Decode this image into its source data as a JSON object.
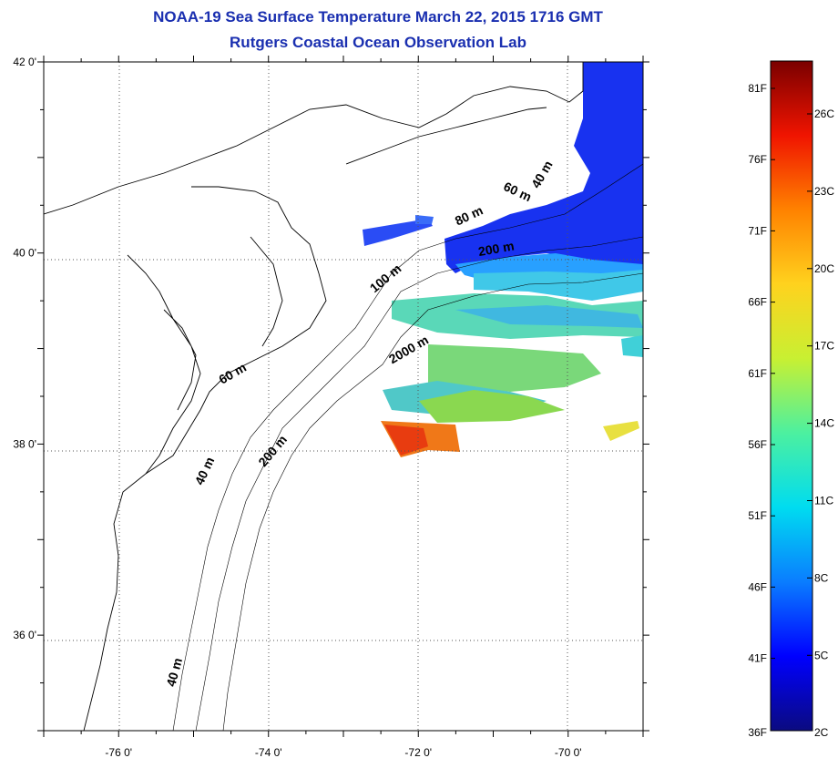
{
  "title": {
    "line1": "NOAA-19 Sea Surface Temperature March 22, 2015 1716 GMT",
    "line2": "Rutgers Coastal Ocean Observation Lab"
  },
  "axes": {
    "lat_labels": [
      {
        "value": 42,
        "label": "42 0'"
      },
      {
        "value": 40,
        "label": "40 0'"
      },
      {
        "value": 38,
        "label": "38 0'"
      },
      {
        "value": 36,
        "label": "36 0'"
      }
    ],
    "lon_labels": [
      {
        "value": -76,
        "label": "-76 0'"
      },
      {
        "value": -74,
        "label": "-74 0'"
      },
      {
        "value": -72,
        "label": "-72 0'"
      },
      {
        "value": -70,
        "label": "-70 0'"
      }
    ],
    "lon_range": [
      -77,
      -69
    ],
    "lat_range": [
      35,
      42
    ]
  },
  "contour_labels": [
    {
      "text": "40 m",
      "lon": -70.3,
      "lat": 40.8,
      "rot": -60
    },
    {
      "text": "60 m",
      "lon": -70.7,
      "lat": 40.6,
      "rot": 25
    },
    {
      "text": "80 m",
      "lon": -71.3,
      "lat": 40.35,
      "rot": -25
    },
    {
      "text": "200 m",
      "lon": -70.95,
      "lat": 40.0,
      "rot": -10
    },
    {
      "text": "100 m",
      "lon": -72.4,
      "lat": 39.7,
      "rot": -40
    },
    {
      "text": "2000 m",
      "lon": -72.1,
      "lat": 38.95,
      "rot": -30
    },
    {
      "text": "60 m",
      "lon": -74.45,
      "lat": 38.7,
      "rot": -30
    },
    {
      "text": "200 m",
      "lon": -73.9,
      "lat": 37.9,
      "rot": -50
    },
    {
      "text": "40 m",
      "lon": -74.8,
      "lat": 37.7,
      "rot": -65
    },
    {
      "text": "40 m",
      "lon": -75.2,
      "lat": 35.6,
      "rot": -75
    }
  ],
  "colorbar": {
    "f_labels": [
      "81F",
      "76F",
      "71F",
      "66F",
      "61F",
      "56F",
      "51F",
      "46F",
      "41F",
      "36F"
    ],
    "c_labels": [
      "26C",
      "23C",
      "20C",
      "17C",
      "14C",
      "11C",
      "8C",
      "5C",
      "2C"
    ],
    "stops": [
      "#0b0b80",
      "#0000ff",
      "#0a7dff",
      "#00dcf0",
      "#4cf0a0",
      "#c8f032",
      "#ffd21e",
      "#ff8200",
      "#f01400",
      "#7a0000"
    ]
  }
}
